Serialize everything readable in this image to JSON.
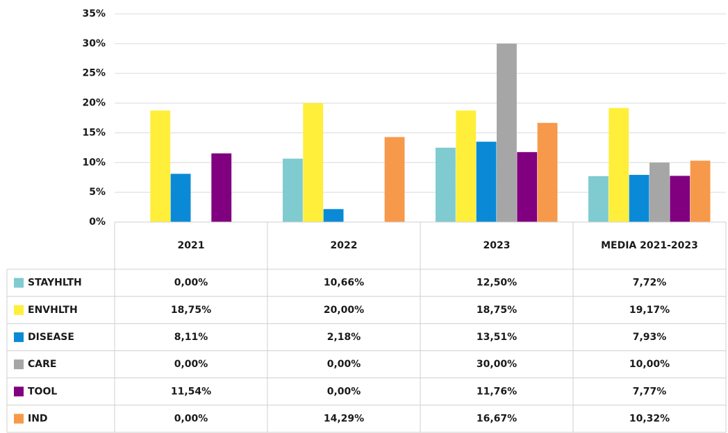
{
  "chart_data": {
    "type": "bar",
    "categories": [
      "2021",
      "2022",
      "2023",
      "MEDIA 2021-2023"
    ],
    "series": [
      {
        "name": "STAYHLTH",
        "color": "#7fcbd0",
        "values": [
          0,
          10.66,
          12.5,
          7.72
        ],
        "value_labels": [
          "0,00%",
          "10,66%",
          "12,50%",
          "7,72%"
        ]
      },
      {
        "name": "ENVHLTH",
        "color": "#ffee3a",
        "values": [
          18.75,
          20,
          18.75,
          19.17
        ],
        "value_labels": [
          "18,75%",
          "20,00%",
          "18,75%",
          "19,17%"
        ]
      },
      {
        "name": "DISEASE",
        "color": "#0a8ad6",
        "values": [
          8.11,
          2.18,
          13.51,
          7.93
        ],
        "value_labels": [
          "8,11%",
          "2,18%",
          "13,51%",
          "7,93%"
        ]
      },
      {
        "name": "CARE",
        "color": "#a6a6a6",
        "values": [
          0,
          0,
          30,
          10
        ],
        "value_labels": [
          "0,00%",
          "0,00%",
          "30,00%",
          "10,00%"
        ]
      },
      {
        "name": "TOOL",
        "color": "#800080",
        "values": [
          11.54,
          0,
          11.76,
          7.77
        ],
        "value_labels": [
          "11,54%",
          "0,00%",
          "11,76%",
          "7,77%"
        ]
      },
      {
        "name": "IND",
        "color": "#f7994a",
        "values": [
          0,
          14.29,
          16.67,
          10.32
        ],
        "value_labels": [
          "0,00%",
          "14,29%",
          "16,67%",
          "10,32%"
        ]
      }
    ],
    "ylim": [
      0,
      35
    ],
    "yticks": [
      {
        "value": 0,
        "label": "0%"
      },
      {
        "value": 5,
        "label": "5%"
      },
      {
        "value": 10,
        "label": "10%"
      },
      {
        "value": 15,
        "label": "15%"
      },
      {
        "value": 20,
        "label": "20%"
      },
      {
        "value": 25,
        "label": "25%"
      },
      {
        "value": 30,
        "label": "30%"
      },
      {
        "value": 35,
        "label": "35%"
      }
    ],
    "grid": true
  }
}
